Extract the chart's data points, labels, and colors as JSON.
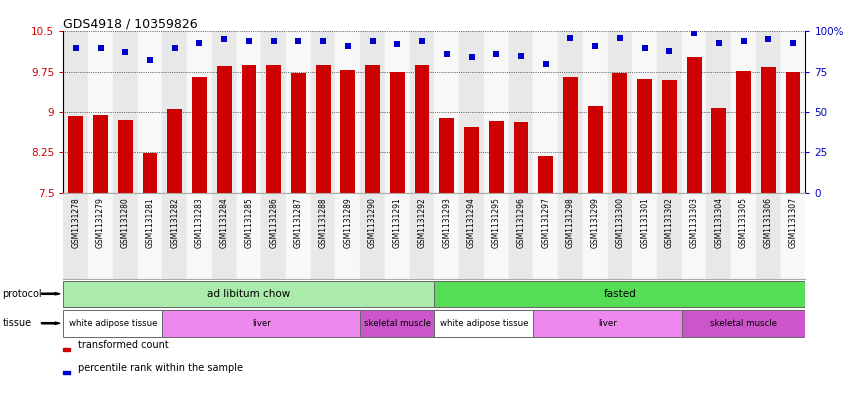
{
  "title": "GDS4918 / 10359826",
  "samples": [
    "GSM1131278",
    "GSM1131279",
    "GSM1131280",
    "GSM1131281",
    "GSM1131282",
    "GSM1131283",
    "GSM1131284",
    "GSM1131285",
    "GSM1131286",
    "GSM1131287",
    "GSM1131288",
    "GSM1131289",
    "GSM1131290",
    "GSM1131291",
    "GSM1131292",
    "GSM1131293",
    "GSM1131294",
    "GSM1131295",
    "GSM1131296",
    "GSM1131297",
    "GSM1131298",
    "GSM1131299",
    "GSM1131300",
    "GSM1131301",
    "GSM1131302",
    "GSM1131303",
    "GSM1131304",
    "GSM1131305",
    "GSM1131306",
    "GSM1131307"
  ],
  "bar_values": [
    8.93,
    8.95,
    8.85,
    8.23,
    9.05,
    9.65,
    9.85,
    9.87,
    9.87,
    9.72,
    9.87,
    9.78,
    9.88,
    9.75,
    9.87,
    8.88,
    8.72,
    8.83,
    8.82,
    8.18,
    9.65,
    9.12,
    9.72,
    9.62,
    9.6,
    10.02,
    9.07,
    9.77,
    9.83,
    9.75
  ],
  "dot_values_pct": [
    90,
    90,
    87,
    82,
    90,
    93,
    95,
    94,
    94,
    94,
    94,
    91,
    94,
    92,
    94,
    86,
    84,
    86,
    85,
    80,
    96,
    91,
    96,
    90,
    88,
    99,
    93,
    94,
    95,
    93
  ],
  "bar_color": "#cc0000",
  "dot_color": "#0000cc",
  "ymin": 7.5,
  "ymax": 10.5,
  "yticks_left": [
    7.5,
    8.25,
    9.0,
    9.75,
    10.5
  ],
  "ytick_labels_left": [
    "7.5",
    "8.25",
    "9",
    "9.75",
    "10.5"
  ],
  "yticks_right_pct": [
    0,
    25,
    50,
    75,
    100
  ],
  "ytick_labels_right": [
    "0",
    "25",
    "50",
    "75",
    "100%"
  ],
  "protocol_groups": [
    {
      "label": "ad libitum chow",
      "start": 0,
      "end": 14,
      "color": "#aaeaaa"
    },
    {
      "label": "fasted",
      "start": 15,
      "end": 29,
      "color": "#55dd55"
    }
  ],
  "tissue_groups": [
    {
      "label": "white adipose tissue",
      "start": 0,
      "end": 3,
      "color": "#ffffff"
    },
    {
      "label": "liver",
      "start": 4,
      "end": 11,
      "color": "#ee88ee"
    },
    {
      "label": "skeletal muscle",
      "start": 12,
      "end": 14,
      "color": "#cc55cc"
    },
    {
      "label": "white adipose tissue",
      "start": 15,
      "end": 18,
      "color": "#ffffff"
    },
    {
      "label": "liver",
      "start": 19,
      "end": 24,
      "color": "#ee88ee"
    },
    {
      "label": "skeletal muscle",
      "start": 25,
      "end": 29,
      "color": "#cc55cc"
    }
  ],
  "col_even_color": "#e8e8e8",
  "col_odd_color": "#f8f8f8",
  "legend_bar_label": "transformed count",
  "legend_dot_label": "percentile rank within the sample"
}
